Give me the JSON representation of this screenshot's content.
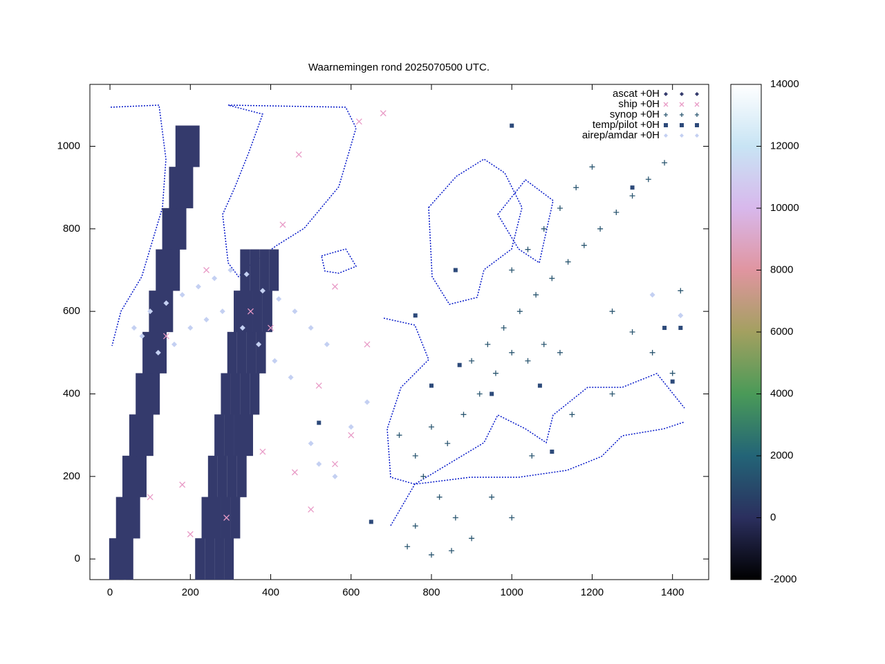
{
  "chart_data": {
    "type": "scatter",
    "title": "Waarnemingen rond 2025070500 UTC.",
    "xlim": [
      -50,
      1490
    ],
    "ylim": [
      -50,
      1150
    ],
    "xticks": [
      0,
      200,
      400,
      600,
      800,
      1000,
      1200,
      1400
    ],
    "yticks": [
      0,
      200,
      400,
      600,
      800,
      1000
    ],
    "legend": "top-right",
    "colorbar": {
      "lim": [
        -2000,
        14000
      ],
      "ticks": [
        -2000,
        0,
        2000,
        4000,
        6000,
        8000,
        10000,
        12000,
        14000
      ],
      "palette": [
        "#000000",
        "#2b2f5e",
        "#236477",
        "#4a9a58",
        "#a3a060",
        "#e095a0",
        "#d8b8ec",
        "#c8e4f4",
        "#ffffff"
      ]
    },
    "series": [
      {
        "name": "ascat +0H",
        "marker": "cell",
        "color": "#343a6c",
        "x": [
          10,
          28,
          46,
          27,
          45,
          63,
          43,
          61,
          79,
          60,
          78,
          96,
          76,
          94,
          112,
          93,
          111,
          129,
          109,
          127,
          145,
          126,
          144,
          162,
          142,
          160,
          178,
          159,
          177,
          195,
          175,
          193,
          211,
          224,
          248,
          272,
          296,
          240,
          264,
          288,
          312,
          256,
          280,
          304,
          328,
          272,
          296,
          320,
          344,
          288,
          312,
          336,
          360,
          304,
          328,
          352,
          376,
          320,
          344,
          368,
          392,
          336,
          360,
          384,
          408
        ],
        "values": [
          0,
          0,
          0,
          100,
          100,
          100,
          200,
          200,
          200,
          300,
          300,
          300,
          400,
          400,
          400,
          500,
          500,
          500,
          600,
          600,
          600,
          700,
          700,
          700,
          800,
          800,
          800,
          900,
          900,
          900,
          1000,
          1000,
          1000,
          0,
          0,
          0,
          0,
          100,
          100,
          100,
          100,
          200,
          200,
          200,
          200,
          300,
          300,
          300,
          300,
          400,
          400,
          400,
          400,
          500,
          500,
          500,
          500,
          600,
          600,
          600,
          600,
          700,
          700,
          700,
          700
        ]
      },
      {
        "name": "ship +0H",
        "marker": "cross",
        "color": "#e89ac6",
        "x": [
          100,
          180,
          240,
          290,
          380,
          400,
          460,
          520,
          560,
          600,
          640,
          470,
          430,
          620,
          680,
          350,
          140,
          200,
          500,
          560
        ],
        "values": [
          150,
          180,
          700,
          100,
          260,
          560,
          210,
          420,
          660,
          300,
          520,
          980,
          810,
          1060,
          1080,
          600,
          540,
          60,
          120,
          230
        ]
      },
      {
        "name": "synop +0H",
        "marker": "plus",
        "color": "#2a5670",
        "x": [
          720,
          760,
          800,
          840,
          780,
          820,
          860,
          900,
          760,
          740,
          880,
          920,
          960,
          1000,
          1040,
          1080,
          1120,
          900,
          940,
          980,
          1020,
          1060,
          1100,
          1140,
          1180,
          1220,
          1260,
          1300,
          1340,
          1380,
          1000,
          1040,
          1080,
          1120,
          1160,
          1200,
          1250,
          1300,
          1350,
          1400,
          1420,
          1250,
          1150,
          1050,
          950,
          1000,
          800,
          850
        ],
        "values": [
          300,
          250,
          320,
          280,
          200,
          150,
          100,
          50,
          80,
          30,
          350,
          400,
          450,
          500,
          480,
          520,
          500,
          480,
          520,
          560,
          600,
          640,
          680,
          720,
          760,
          800,
          840,
          880,
          920,
          960,
          700,
          750,
          800,
          850,
          900,
          950,
          600,
          550,
          500,
          450,
          650,
          400,
          350,
          250,
          150,
          100,
          10,
          20
        ]
      },
      {
        "name": "temp/pilot +0H",
        "marker": "square",
        "color": "#2d4a7a",
        "x": [
          520,
          800,
          870,
          950,
          1100,
          1300,
          1400,
          1420,
          1380,
          760,
          1000,
          860,
          650,
          1070
        ],
        "values": [
          330,
          420,
          470,
          400,
          260,
          900,
          430,
          560,
          560,
          590,
          1050,
          700,
          90,
          420
        ]
      },
      {
        "name": "airep/amdar +0H",
        "marker": "diamond",
        "color": "#c4d0f2",
        "x": [
          60,
          100,
          140,
          180,
          220,
          260,
          300,
          340,
          380,
          420,
          460,
          500,
          540,
          80,
          120,
          160,
          200,
          240,
          280,
          330,
          370,
          410,
          450,
          500,
          520,
          560,
          600,
          640,
          1420,
          1350
        ],
        "values": [
          560,
          600,
          620,
          640,
          660,
          680,
          700,
          690,
          650,
          630,
          600,
          560,
          520,
          540,
          500,
          520,
          560,
          580,
          600,
          560,
          520,
          480,
          440,
          280,
          230,
          200,
          320,
          380,
          590,
          640
        ]
      }
    ]
  }
}
